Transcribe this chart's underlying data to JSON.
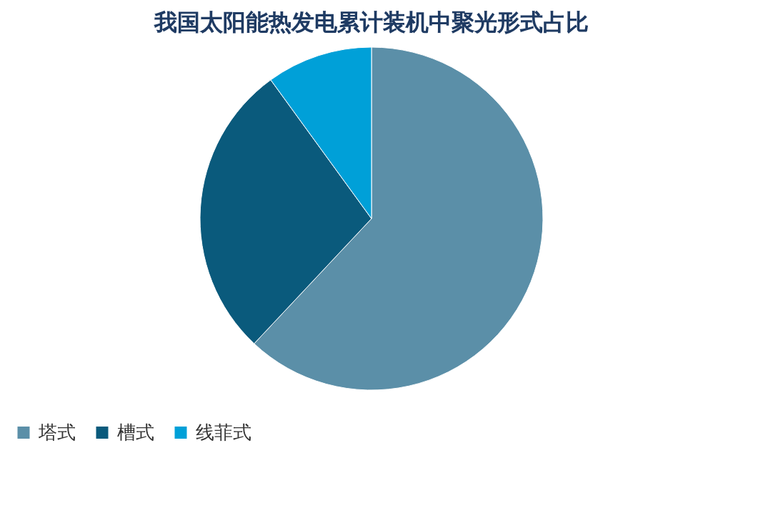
{
  "chart_data": {
    "type": "pie",
    "title": "我国太阳能热发电累计装机中聚光形式占比",
    "categories": [
      "塔式",
      "槽式",
      "线菲式"
    ],
    "values": [
      62,
      28,
      10
    ],
    "colors": [
      "#5b8fa8",
      "#0a5a7c",
      "#00a0d8"
    ],
    "legend": "bottom"
  }
}
